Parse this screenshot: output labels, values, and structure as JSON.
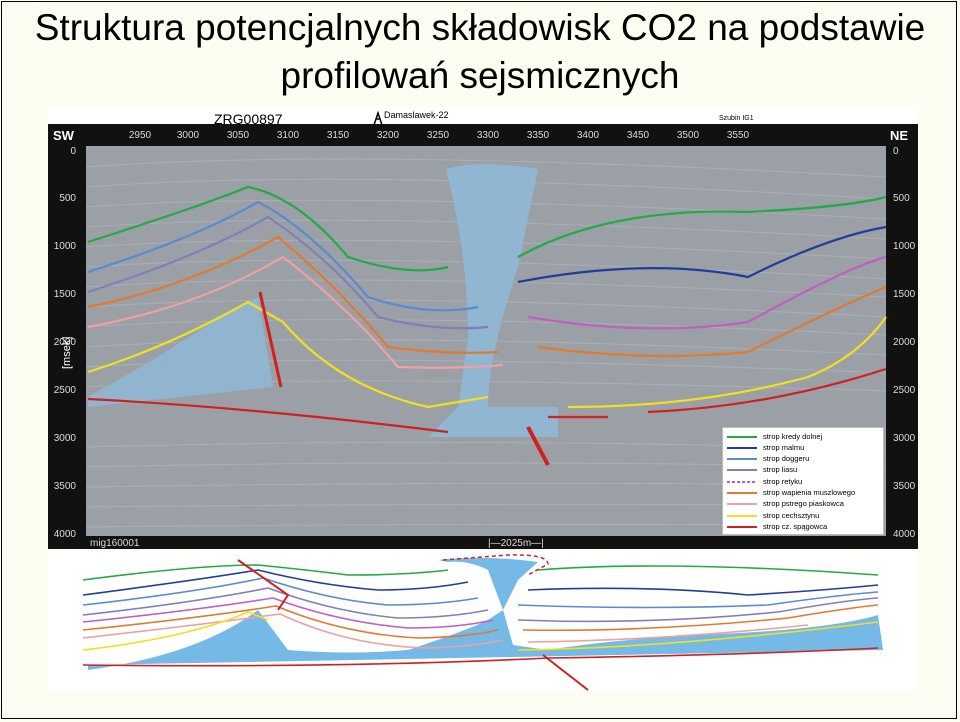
{
  "title": {
    "line1": "Struktura potencjalnych składowisk CO2 na podstawie",
    "line2": "profilowań sejsmicznych"
  },
  "seismic": {
    "line_id": "ZRG00897",
    "well_left": "Damaslawek-22",
    "well_right": "Szubin IG1",
    "dir_left": "SW",
    "dir_right": "NE",
    "axis_label": "[msek]",
    "x_ticks": [
      "2950",
      "3000",
      "3050",
      "3100",
      "3150",
      "3200",
      "3250",
      "3300",
      "3350",
      "3400",
      "3450",
      "3500",
      "3550"
    ],
    "y_ticks": [
      "0",
      "500",
      "1000",
      "1500",
      "2000",
      "2500",
      "3000",
      "3500",
      "4000"
    ],
    "footer_left": "mig160001",
    "scale_label": "2025m",
    "background_color": "#9aa0a6",
    "salt_color": "#8fb8d6"
  },
  "legend": [
    {
      "label": "strop kredy dolnej",
      "color": "#22aa44"
    },
    {
      "label": "strop malmu",
      "color": "#223c9a"
    },
    {
      "label": "strop doggeru",
      "color": "#5a8ad0"
    },
    {
      "label": "strop liasu",
      "color": "#8080b8"
    },
    {
      "label": "strop retyku",
      "color": "#c060c0"
    },
    {
      "label": "strop wapienia muszlowego",
      "color": "#e07a30"
    },
    {
      "label": "strop pstrego piaskowca",
      "color": "#f0a0a0"
    },
    {
      "label": "strop cechsztynu",
      "color": "#f0e020"
    },
    {
      "label": "strop cz. spągowca",
      "color": "#d02020"
    }
  ]
}
